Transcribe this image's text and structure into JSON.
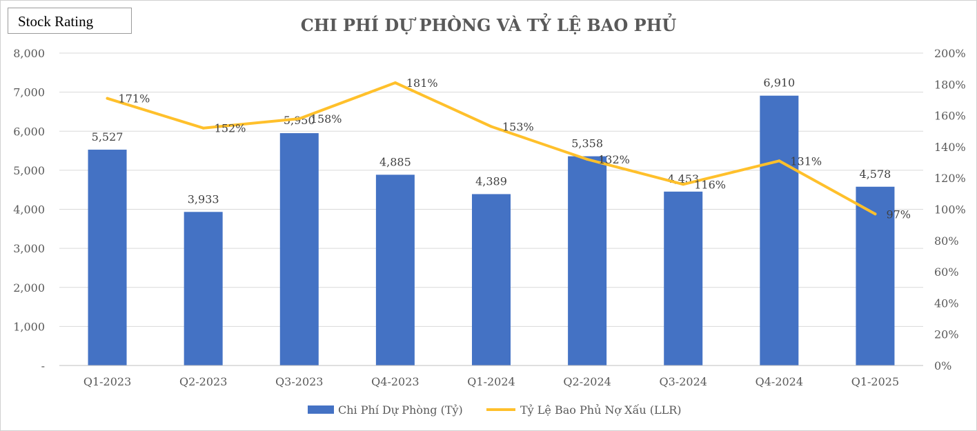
{
  "badge": {
    "label": "Stock Rating"
  },
  "chart_data": {
    "type": "bar",
    "title": "CHI PHÍ DỰ PHÒNG VÀ TỶ LỆ BAO PHỦ",
    "categories": [
      "Q1-2023",
      "Q2-2023",
      "Q3-2023",
      "Q4-2023",
      "Q1-2024",
      "Q2-2024",
      "Q3-2024",
      "Q4-2024",
      "Q1-2025"
    ],
    "series": [
      {
        "name": "Chi Phí Dự Phòng (Tỷ)",
        "type": "bar",
        "axis": "left",
        "color": "#4472C4",
        "values": [
          5527,
          3933,
          5950,
          4885,
          4389,
          5358,
          4453,
          6910,
          4578
        ],
        "labels": [
          "5,527",
          "3,933",
          "5,950",
          "4,885",
          "4,389",
          "5,358",
          "4,453",
          "6,910",
          "4,578"
        ]
      },
      {
        "name": "Tỷ Lệ Bao Phủ Nợ Xấu (LLR)",
        "type": "line",
        "axis": "right",
        "color": "#FFC02B",
        "values": [
          171,
          152,
          158,
          181,
          153,
          132,
          116,
          131,
          97
        ],
        "labels": [
          "171%",
          "152%",
          "158%",
          "181%",
          "153%",
          "132%",
          "116%",
          "131%",
          "97%"
        ]
      }
    ],
    "y_left": {
      "range": [
        0,
        8000
      ],
      "ticks": [
        0,
        1000,
        2000,
        3000,
        4000,
        5000,
        6000,
        7000,
        8000
      ],
      "tick_labels": [
        "-",
        "1,000",
        "2,000",
        "3,000",
        "4,000",
        "5,000",
        "6,000",
        "7,000",
        "8,000"
      ]
    },
    "y_right": {
      "range": [
        0,
        200
      ],
      "ticks": [
        0,
        20,
        40,
        60,
        80,
        100,
        120,
        140,
        160,
        180,
        200
      ],
      "tick_labels": [
        "0%",
        "20%",
        "40%",
        "60%",
        "80%",
        "100%",
        "120%",
        "140%",
        "160%",
        "180%",
        "200%"
      ]
    },
    "grid": true,
    "legend": "bottom"
  }
}
